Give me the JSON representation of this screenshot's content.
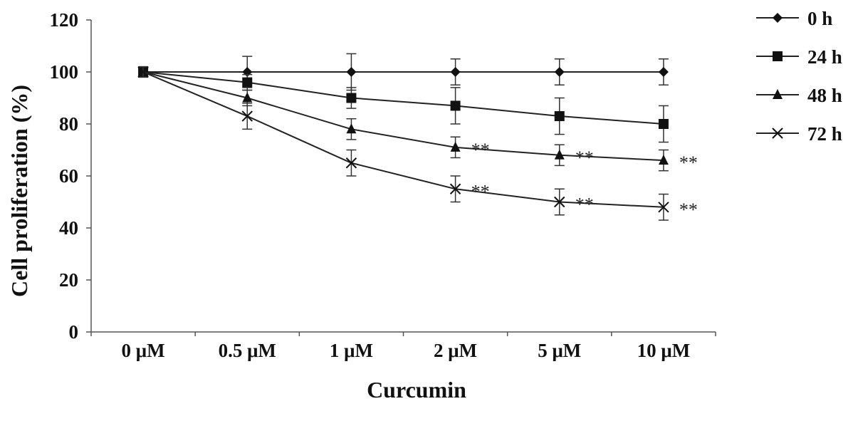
{
  "chart_data": {
    "type": "line",
    "title": "",
    "xlabel": "Curcumin",
    "ylabel": "Cell proliferation (%)",
    "ylim": [
      0,
      120
    ],
    "yticks": [
      "0",
      "20",
      "40",
      "60",
      "80",
      "100",
      "120"
    ],
    "categories": [
      "0 μM",
      "0.5 μM",
      "1 μM",
      "2 μM",
      "5 μM",
      "10 μM"
    ],
    "grid": false,
    "legend_position": "top-right",
    "error_bars": true,
    "series": [
      {
        "name": "0 h",
        "marker": "diamond",
        "values": [
          100,
          100,
          100,
          100,
          100,
          100
        ],
        "errors": [
          2,
          6,
          7,
          5,
          5,
          5
        ],
        "significance": [
          "",
          "",
          "",
          "",
          "",
          ""
        ]
      },
      {
        "name": "24 h",
        "marker": "square",
        "values": [
          100,
          96,
          90,
          87,
          83,
          80
        ],
        "errors": [
          2,
          3,
          4,
          7,
          7,
          7
        ],
        "significance": [
          "",
          "",
          "",
          "",
          "",
          ""
        ]
      },
      {
        "name": "48 h",
        "marker": "triangle",
        "values": [
          100,
          90,
          78,
          71,
          68,
          66
        ],
        "errors": [
          2,
          3,
          4,
          4,
          4,
          4
        ],
        "significance": [
          "",
          "",
          "",
          "**",
          "**",
          "**"
        ]
      },
      {
        "name": "72 h",
        "marker": "cross",
        "values": [
          100,
          83,
          65,
          55,
          50,
          48
        ],
        "errors": [
          2,
          5,
          5,
          5,
          5,
          5
        ],
        "significance": [
          "",
          "",
          "",
          "**",
          "**",
          "**"
        ]
      }
    ]
  }
}
